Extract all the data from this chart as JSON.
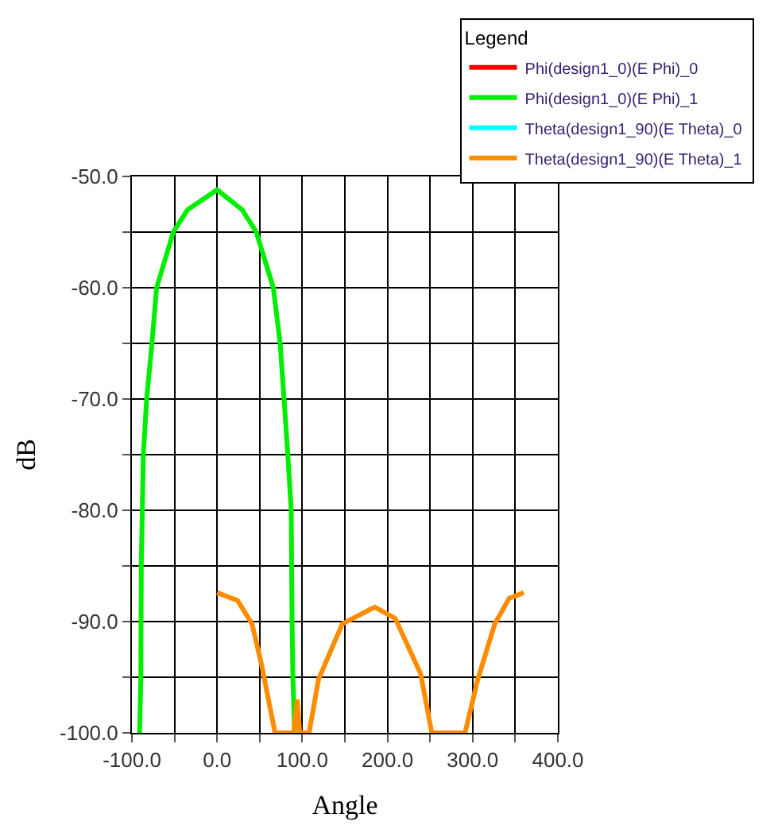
{
  "chart_data": {
    "type": "line",
    "xlabel": "Angle",
    "ylabel": "dB",
    "legend_title": "Legend",
    "xlim": [
      -100,
      400
    ],
    "ylim": [
      -100,
      -50
    ],
    "xticks": [
      {
        "value": -100,
        "label": "-100.0"
      },
      {
        "value": -50,
        "label": null
      },
      {
        "value": 0,
        "label": "0.0"
      },
      {
        "value": 50,
        "label": null
      },
      {
        "value": 100,
        "label": "100.0"
      },
      {
        "value": 150,
        "label": null
      },
      {
        "value": 200,
        "label": "200.0"
      },
      {
        "value": 250,
        "label": null
      },
      {
        "value": 300,
        "label": "300.0"
      },
      {
        "value": 350,
        "label": null
      },
      {
        "value": 400,
        "label": "400.0"
      }
    ],
    "yticks": [
      {
        "value": -100,
        "label": "-100.0"
      },
      {
        "value": -95,
        "label": null
      },
      {
        "value": -90,
        "label": "-90.0"
      },
      {
        "value": -85,
        "label": null
      },
      {
        "value": -80,
        "label": "-80.0"
      },
      {
        "value": -75,
        "label": null
      },
      {
        "value": -70,
        "label": "-70.0"
      },
      {
        "value": -65,
        "label": null
      },
      {
        "value": -60,
        "label": "-60.0"
      },
      {
        "value": -55,
        "label": null
      },
      {
        "value": -50,
        "label": "-50.0"
      }
    ],
    "grid": true,
    "legend": "top right",
    "marker": "none",
    "line_style": "solid",
    "series": [
      {
        "name": "Phi(design1_0)(E Phi)_0",
        "color": "#ff0000"
      },
      {
        "name": "Phi(design1_0)(E Phi)_1",
        "color": "#00ee00",
        "x": [
          -91,
          -89.5,
          -89,
          -87.8,
          -86.6,
          -82.7,
          -76.5,
          -71,
          -51.4,
          -34.7,
          0,
          29.5,
          46,
          66,
          74,
          78.6,
          83,
          87,
          88,
          89,
          91
        ],
        "values": [
          -100,
          -95,
          -85,
          -80,
          -75,
          -70,
          -65,
          -60,
          -55,
          -53,
          -51.2,
          -53,
          -55,
          -60,
          -65,
          -70,
          -75,
          -80,
          -90,
          -95,
          -100
        ]
      },
      {
        "name": "Theta(design1_90)(E Theta)_0",
        "color": "#00ffff"
      },
      {
        "name": "Theta(design1_90)(E Theta)_1",
        "color": "#ff8c00",
        "x": [
          0,
          24,
          41,
          52,
          68,
          90,
          94,
          97,
          108,
          119,
          147,
          185,
          209,
          239,
          252,
          291,
          306,
          326,
          343,
          360
        ],
        "values": [
          -87.4,
          -88.1,
          -90.2,
          -93.8,
          -100,
          -100,
          -97,
          -100,
          -100,
          -95.2,
          -90.2,
          -88.7,
          -89.7,
          -94.7,
          -100,
          -100,
          -95.2,
          -90.2,
          -87.9,
          -87.4
        ]
      }
    ]
  }
}
